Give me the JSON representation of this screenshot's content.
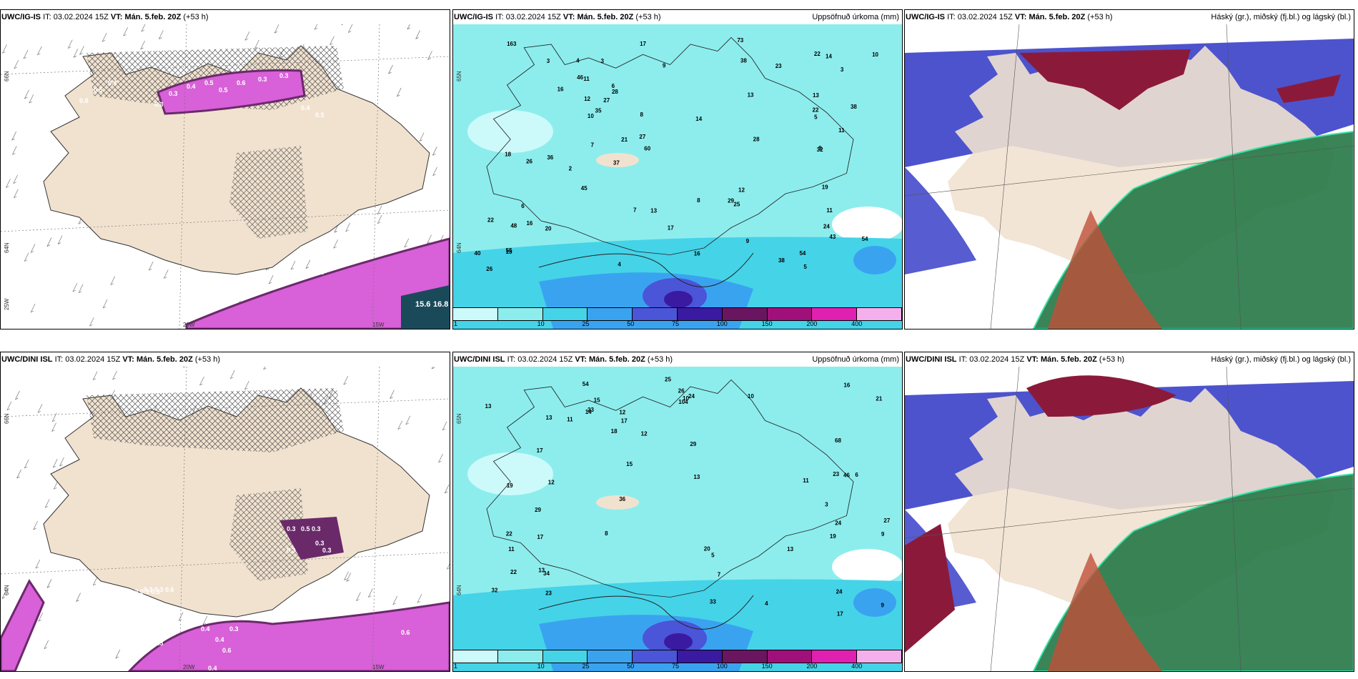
{
  "panels": [
    {
      "id": "top-left",
      "model": "UWC/IG-IS",
      "it_label": "IT:",
      "it": "03.02.2024 15Z",
      "vt_label": "VT:",
      "vt": "Mán. 5.feb. 20Z",
      "lead": "(+53 h)",
      "right": "",
      "kind": "ice",
      "lat_labels": [
        "66N",
        "64N",
        "25W"
      ],
      "lon_labels": [
        "20W",
        "15W"
      ],
      "values": [
        "0.8",
        "0.5",
        "0.4",
        "0.3",
        "0.3",
        "0.4",
        "0.5",
        "0.5",
        "0.6",
        "0.3",
        "0.3",
        "0.4",
        "0.5",
        "0.5",
        "15.6",
        "16.8",
        "0.3"
      ]
    },
    {
      "id": "top-mid",
      "model": "UWC/IG-IS",
      "it_label": "IT:",
      "it": "03.02.2024 15Z",
      "vt_label": "VT:",
      "vt": "Mán. 5.feb. 20Z",
      "lead": "(+53 h)",
      "right": "Uppsöfnuð úrkoma (mm)",
      "kind": "precip",
      "lat_labels": [
        "65N",
        "64N"
      ],
      "values": [
        "14",
        "11",
        "10",
        "19",
        "13",
        "16",
        "22",
        "5",
        "9",
        "6",
        "8",
        "13",
        "15",
        "7",
        "11",
        "26",
        "28",
        "12",
        "27",
        "23",
        "10",
        "4",
        "3",
        "16",
        "20",
        "17",
        "14",
        "13",
        "8",
        "5",
        "6",
        "7",
        "3",
        "2",
        "3",
        "4",
        "9",
        "11",
        "12",
        "28",
        "29",
        "8",
        "16",
        "22",
        "18",
        "27",
        "54",
        "38",
        "46",
        "43",
        "60",
        "48",
        "21",
        "38",
        "45",
        "73",
        "54",
        "163",
        "40",
        "37",
        "38",
        "32",
        "35",
        "22",
        "17",
        "26",
        "24",
        "55",
        "36",
        "25"
      ]
    },
    {
      "id": "top-right",
      "model": "UWC/IG-IS",
      "it_label": "IT:",
      "it": "03.02.2024 15Z",
      "vt_label": "VT:",
      "vt": "Mán. 5.feb. 20Z",
      "lead": "(+53 h)",
      "right": "Háský (gr.), miðský (fj.bl.) og lágský (bl.)",
      "kind": "cloud"
    },
    {
      "id": "bot-left",
      "model": "UWC/DINI ISL",
      "it_label": "IT:",
      "it": "03.02.2024 15Z",
      "vt_label": "VT:",
      "vt": "Mán. 5.feb. 20Z",
      "lead": "(+53 h)",
      "right": "",
      "kind": "ice",
      "lat_labels": [
        "66N",
        "64N"
      ],
      "lon_labels": [
        "20W",
        "15W"
      ],
      "values": [
        "0.3",
        "0.5",
        "0.3",
        "0.3",
        "0.3",
        "0.3",
        "0.3",
        "0.3",
        "0.6",
        "0.2",
        "0.3",
        "0.3",
        "0.1",
        "0.3",
        "0.4",
        "0.6",
        "0.4",
        "0.3",
        "0.6",
        "0.4"
      ]
    },
    {
      "id": "bot-mid",
      "model": "UWC/DINI ISL",
      "it_label": "IT:",
      "it": "03.02.2024 15Z",
      "vt_label": "VT:",
      "vt": "Mán. 5.feb. 20Z",
      "lead": "(+53 h)",
      "right": "Uppsöfnuð úrkoma (mm)",
      "kind": "precip",
      "lat_labels": [
        "65N",
        "64N"
      ],
      "values": [
        "17",
        "29",
        "13",
        "15",
        "8",
        "11",
        "13",
        "16",
        "23",
        "24",
        "20",
        "27",
        "9",
        "10",
        "11",
        "12",
        "13",
        "17",
        "26",
        "10",
        "4",
        "5",
        "6",
        "7",
        "9",
        "11",
        "12",
        "13",
        "15",
        "18",
        "19",
        "22",
        "23",
        "25",
        "33",
        "54",
        "104",
        "29",
        "46",
        "24",
        "34",
        "32",
        "68",
        "21",
        "22",
        "17",
        "19",
        "36",
        "24",
        "23",
        "17",
        "12",
        "14",
        "3",
        "13"
      ]
    },
    {
      "id": "bot-right",
      "model": "UWC/DINI ISL",
      "it_label": "IT:",
      "it": "03.02.2024 15Z",
      "vt_label": "VT:",
      "vt": "Mán. 5.feb. 20Z",
      "lead": "(+53 h)",
      "right": "Háský (gr.), miðský (fj.bl.) og lágský (bl.)",
      "kind": "cloud"
    }
  ],
  "precip_legend": {
    "labels": [
      "1",
      "10",
      "25",
      "50",
      "75",
      "100",
      "150",
      "200",
      "400"
    ],
    "colors": [
      "#ccfafa",
      "#8deded",
      "#45d3e8",
      "#3aa3f0",
      "#4a55d8",
      "#3a1aa0",
      "#6a1560",
      "#a0107a",
      "#e020b0",
      "#f4b0ec"
    ]
  },
  "colors": {
    "land": "#f1e2d0",
    "ice_pink": "#d860d8",
    "ice_dark": "#6a2a6a",
    "precip_bg": "#8deded",
    "cloud_high": "#8b1a3a",
    "cloud_mid": "#3a40c8",
    "cloud_low": "#2a7a4a"
  }
}
